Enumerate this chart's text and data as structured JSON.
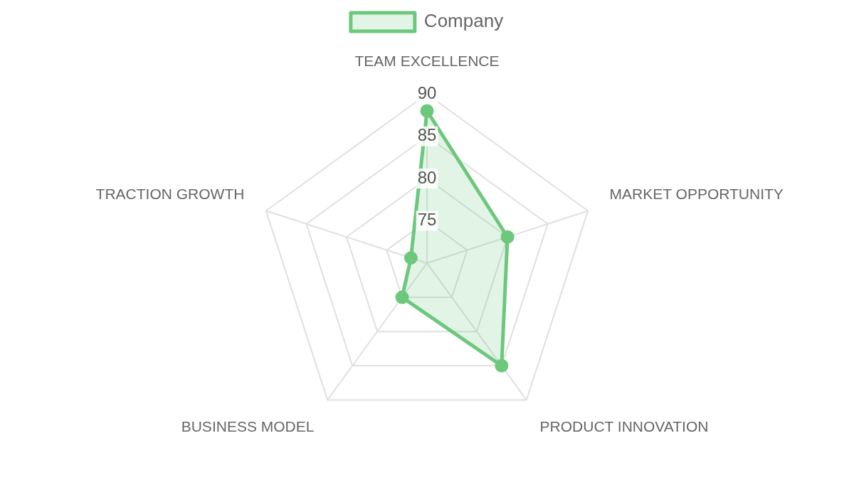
{
  "chart_data": {
    "type": "radar",
    "categories": [
      "TEAM EXCELLENCE",
      "MARKET OPPORTUNITY",
      "PRODUCT INNOVATION",
      "BUSINESS MODEL",
      "TRACTION GROWTH"
    ],
    "series": [
      {
        "name": "Company",
        "color": "#6cc87c",
        "values": [
          88,
          80,
          85,
          75,
          72
        ]
      }
    ],
    "ylim": [
      70,
      90
    ],
    "yticks": [
      75,
      80,
      85,
      90
    ],
    "grid": true,
    "legend": "top",
    "marker": "circle"
  }
}
